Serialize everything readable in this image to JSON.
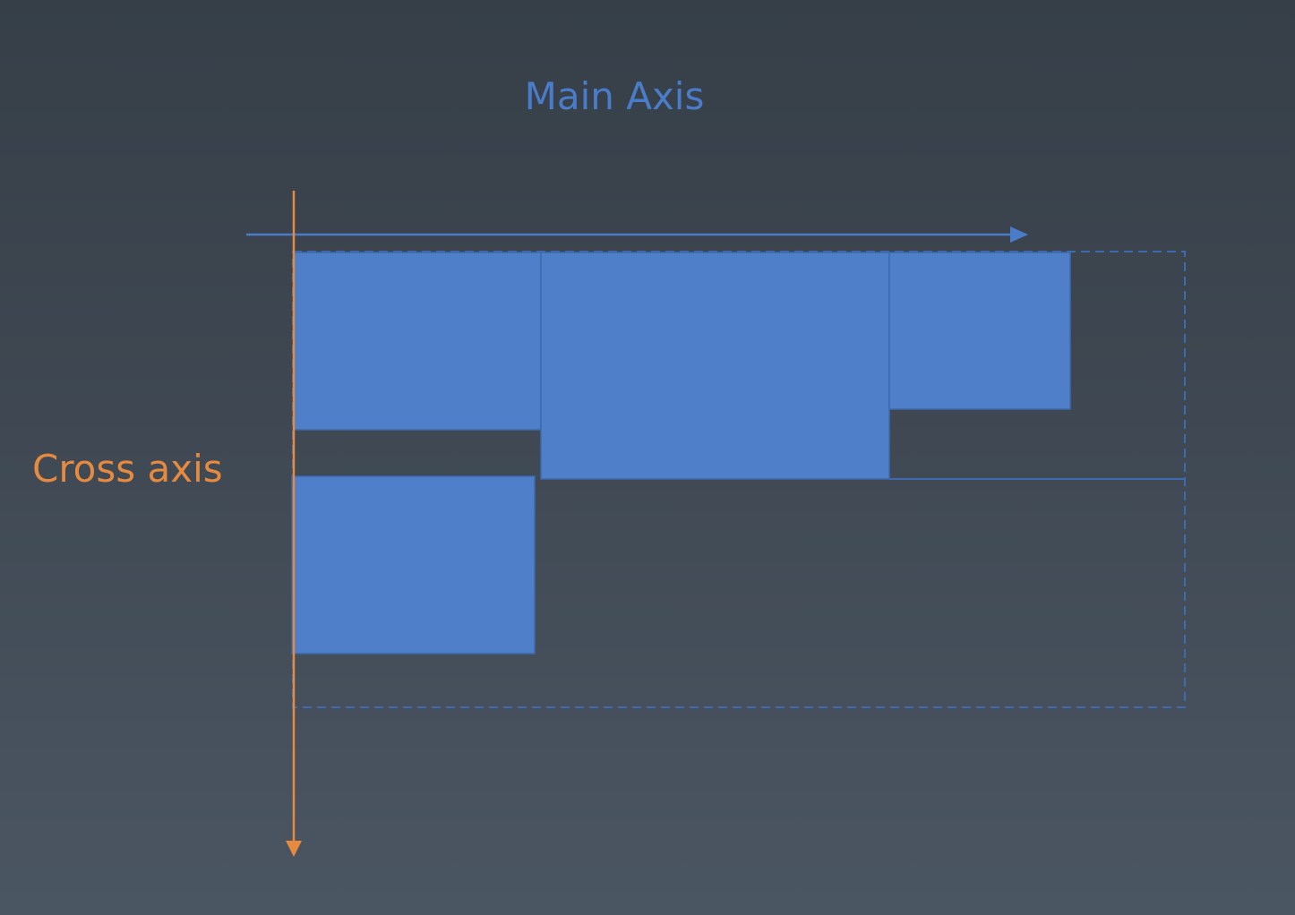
{
  "labels": {
    "main_axis": "Main Axis",
    "cross_axis": "Cross axis"
  },
  "colors": {
    "main_axis": "#4a7cc9",
    "cross_axis": "#e58a3e",
    "item_fill": "#4f7fc8",
    "item_border": "#3d6aae",
    "container_border": "#3e6bb0"
  }
}
